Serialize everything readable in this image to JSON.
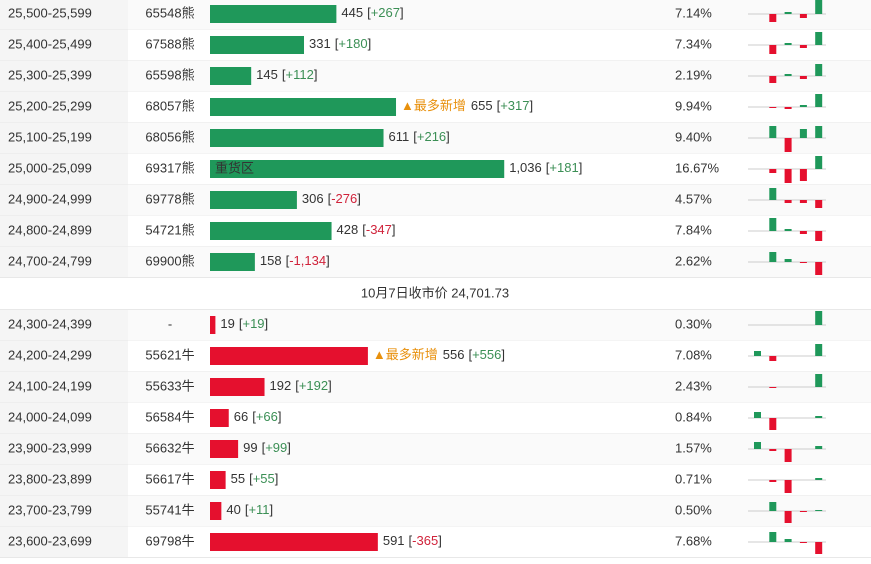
{
  "label_brackets": [
    "[",
    "]"
  ],
  "divider": "10月7日收市价 24,701.73",
  "bear_rows": [
    {
      "range": "25,500-25,599",
      "code": "65548熊",
      "count": 445,
      "change": "+267",
      "pct": "7.14%",
      "trend": [
        0,
        -8,
        2,
        -4,
        14
      ]
    },
    {
      "range": "25,400-25,499",
      "code": "67588熊",
      "count": 331,
      "change": "+180",
      "pct": "7.34%",
      "trend": [
        0,
        -9,
        2,
        -3,
        13
      ]
    },
    {
      "range": "25,300-25,399",
      "code": "65598熊",
      "count": 145,
      "change": "+112",
      "pct": "2.19%",
      "trend": [
        0,
        -7,
        2,
        -3,
        12
      ]
    },
    {
      "range": "25,200-25,299",
      "code": "68057熊",
      "count": 655,
      "change": "+317",
      "note": "▲最多新增",
      "pct": "9.94%",
      "trend": [
        0,
        -1,
        -2,
        2,
        13
      ]
    },
    {
      "range": "25,100-25,199",
      "code": "68056熊",
      "count": 611,
      "change": "+216",
      "pct": "9.40%",
      "trend": [
        0,
        12,
        -14,
        9,
        12
      ]
    },
    {
      "range": "25,000-25,099",
      "code": "69317熊",
      "count": 1036,
      "count_label": "1,036",
      "change": "+181",
      "inner": "重货区",
      "pct": "16.67%",
      "trend": [
        0,
        -4,
        -14,
        -12,
        13
      ]
    },
    {
      "range": "24,900-24,999",
      "code": "69778熊",
      "count": 306,
      "change": "-276",
      "pct": "4.57%",
      "trend": [
        0,
        12,
        -3,
        -3,
        -8
      ]
    },
    {
      "range": "24,800-24,899",
      "code": "54721熊",
      "count": 428,
      "change": "-347",
      "pct": "7.84%",
      "trend": [
        0,
        13,
        2,
        -3,
        -10
      ]
    },
    {
      "range": "24,700-24,799",
      "code": "69900熊",
      "count": 158,
      "change": "-1,134",
      "pct": "2.62%",
      "trend": [
        0,
        10,
        3,
        -1,
        -13
      ]
    }
  ],
  "bull_rows": [
    {
      "range": "24,300-24,399",
      "code": "-",
      "count": 19,
      "change": "+19",
      "pct": "0.30%",
      "trend": [
        0,
        0,
        0,
        0,
        14
      ]
    },
    {
      "range": "24,200-24,299",
      "code": "55621牛",
      "count": 556,
      "change": "+556",
      "note": "▲最多新增",
      "pct": "7.08%",
      "trend": [
        5,
        -5,
        0,
        0,
        12
      ]
    },
    {
      "range": "24,100-24,199",
      "code": "55633牛",
      "count": 192,
      "change": "+192",
      "pct": "2.43%",
      "trend": [
        0,
        -1,
        0,
        0,
        13
      ]
    },
    {
      "range": "24,000-24,099",
      "code": "56584牛",
      "count": 66,
      "change": "+66",
      "pct": "0.84%",
      "trend": [
        6,
        -12,
        0,
        0,
        2
      ]
    },
    {
      "range": "23,900-23,999",
      "code": "56632牛",
      "count": 99,
      "change": "+99",
      "pct": "1.57%",
      "trend": [
        7,
        -2,
        -13,
        0,
        3
      ]
    },
    {
      "range": "23,800-23,899",
      "code": "56617牛",
      "count": 55,
      "change": "+55",
      "pct": "0.71%",
      "trend": [
        0,
        -2,
        -13,
        0,
        2
      ]
    },
    {
      "range": "23,700-23,799",
      "code": "55741牛",
      "count": 40,
      "change": "+11",
      "pct": "0.50%",
      "trend": [
        0,
        9,
        -12,
        -1,
        1
      ]
    },
    {
      "range": "23,600-23,699",
      "code": "69798牛",
      "count": 591,
      "change": "-365",
      "pct": "7.68%",
      "trend": [
        0,
        10,
        3,
        -1,
        -12
      ]
    }
  ]
}
